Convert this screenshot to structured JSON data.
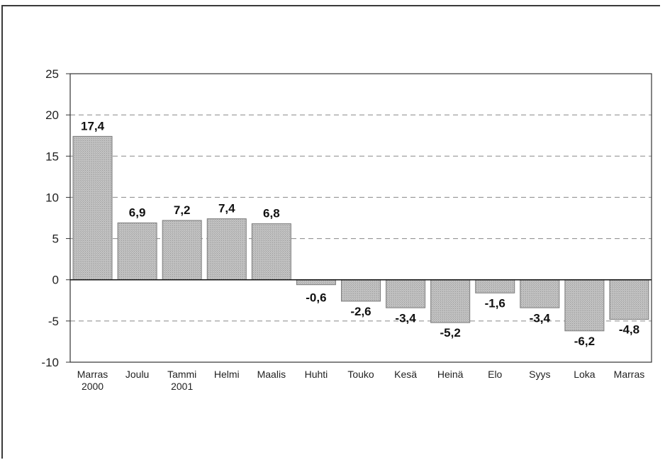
{
  "chart_data": {
    "type": "bar",
    "categories": [
      [
        "Marras",
        "2000"
      ],
      [
        "Joulu"
      ],
      [
        "Tammi",
        "2001"
      ],
      [
        "Helmi"
      ],
      [
        "Maalis"
      ],
      [
        "Huhti"
      ],
      [
        "Touko"
      ],
      [
        "Kesä"
      ],
      [
        "Heinä"
      ],
      [
        "Elo"
      ],
      [
        "Syys"
      ],
      [
        "Loka"
      ],
      [
        "Marras"
      ]
    ],
    "values": [
      17.4,
      6.9,
      7.2,
      7.4,
      6.8,
      -0.6,
      -2.6,
      -3.4,
      -5.2,
      -1.6,
      -3.4,
      -6.2,
      -4.8
    ],
    "value_labels": [
      "17,4",
      "6,9",
      "7,2",
      "7,4",
      "6,8",
      "-0,6",
      "-2,6",
      "-3,4",
      "-5,2",
      "-1,6",
      "-3,4",
      "-6,2",
      "-4,8"
    ],
    "ylim": [
      -10,
      25
    ],
    "yticks": [
      25,
      20,
      15,
      10,
      5,
      0,
      -5,
      -10
    ],
    "grid": true,
    "grid_style": "dashed",
    "bar_fill": "#c2c2c2",
    "bar_edge": "#7a7a7a",
    "title": "",
    "xlabel": "",
    "ylabel": ""
  }
}
